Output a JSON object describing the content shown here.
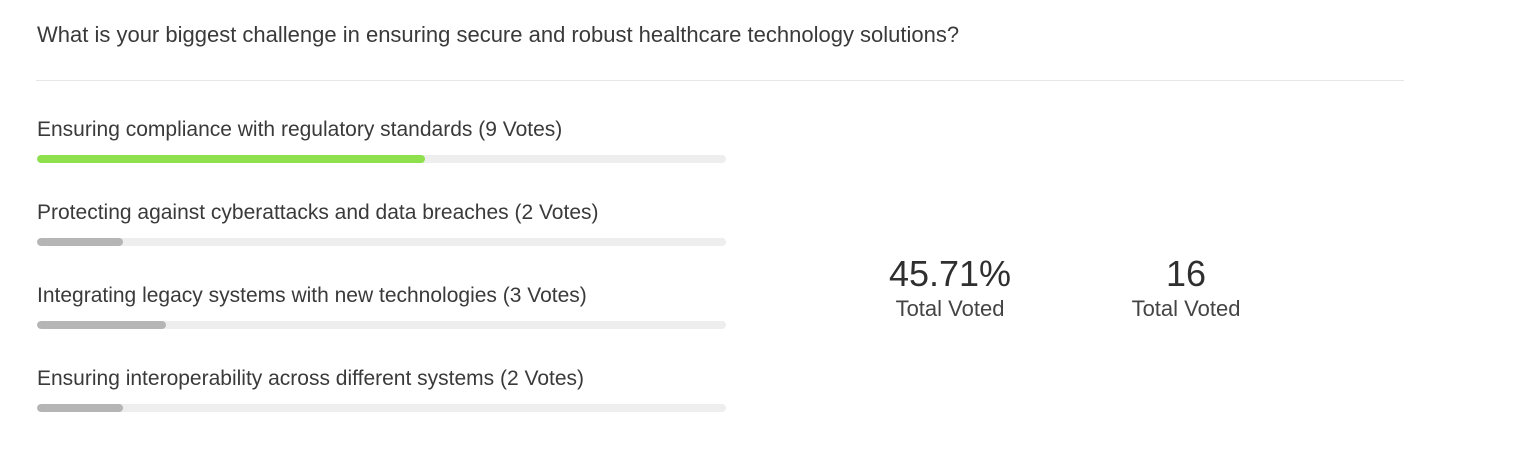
{
  "poll": {
    "question": "What is your biggest challenge in ensuring secure and robust healthcare technology solutions?",
    "options": [
      {
        "label": "Ensuring compliance with regulatory standards (9 Votes)",
        "votes": 9,
        "fraction": 0.5625,
        "color": "#8ee04d"
      },
      {
        "label": "Protecting against cyberattacks and data breaches (2 Votes)",
        "votes": 2,
        "fraction": 0.125,
        "color": "#b5b5b5"
      },
      {
        "label": "Integrating legacy systems with new technologies (3 Votes)",
        "votes": 3,
        "fraction": 0.1875,
        "color": "#b5b5b5"
      },
      {
        "label": "Ensuring interoperability across different systems (2 Votes)",
        "votes": 2,
        "fraction": 0.125,
        "color": "#b5b5b5"
      }
    ],
    "stats": {
      "percent_value": "45.71%",
      "percent_label": "Total Voted",
      "count_value": "16",
      "count_label": "Total Voted"
    }
  }
}
